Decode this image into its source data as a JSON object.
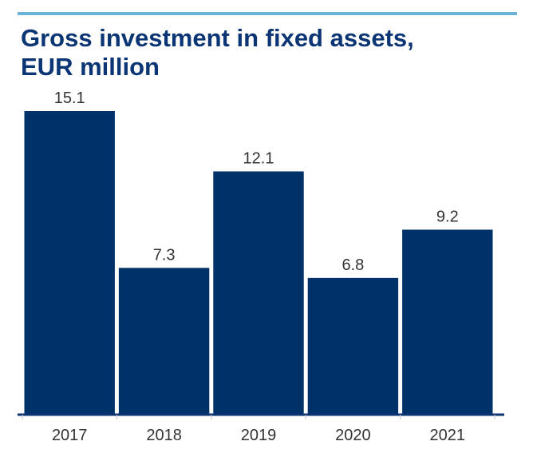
{
  "chart_data": {
    "type": "bar",
    "title": "Gross investment in fixed assets, EUR million",
    "categories": [
      "2017",
      "2018",
      "2019",
      "2020",
      "2021"
    ],
    "values": [
      15.1,
      7.3,
      12.1,
      6.8,
      9.2
    ],
    "value_labels": [
      "15.1",
      "7.3",
      "12.1",
      "6.8",
      "9.2"
    ],
    "ylim": [
      0,
      15.1
    ],
    "grid": false,
    "legend": "none",
    "xlabel": "",
    "ylabel": "",
    "colors": {
      "bar": "#003168",
      "axis": "#0b3574",
      "accent_rule": "#6db3d9",
      "title": "#0b3574",
      "label": "#333333"
    }
  }
}
